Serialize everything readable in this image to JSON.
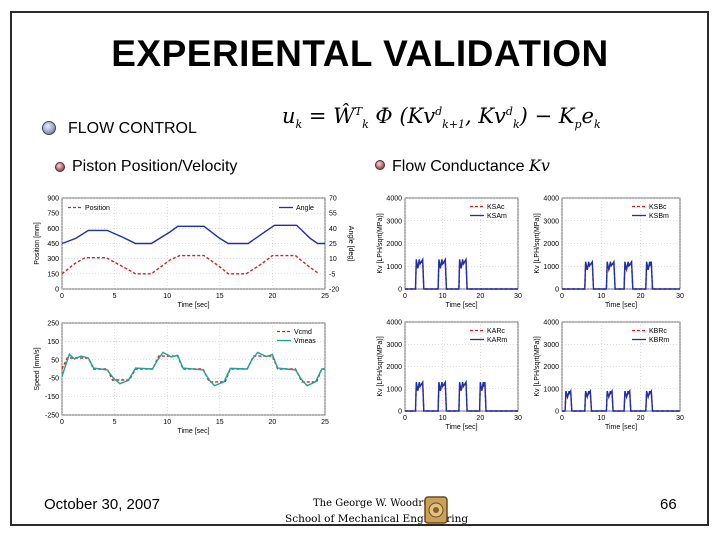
{
  "slide": {
    "title": "EXPERIENTAL VALIDATION",
    "flow_control": "FLOW CONTROL",
    "piston_label": "Piston Position/Velocity",
    "flow_conductance_label": "Flow Conductance",
    "flow_conductance_symbol": "Kv",
    "date": "October 30, 2007",
    "page_number": "66",
    "logo_line1": "The George W. Woodruff",
    "logo_line2": "School of Mechanical Engineering"
  },
  "colors": {
    "red": "#d42020",
    "blue": "#1c2fb0",
    "teal": "#1aa59a"
  },
  "chart_data": [
    {
      "type": "line",
      "xlabel": "Time [sec]",
      "ylabel": "Position [mm]",
      "y2label": "Angle [deg]",
      "xticks": [
        "0",
        "5",
        "10",
        "15",
        "20",
        "25"
      ],
      "yticks": [
        "900",
        "750",
        "600",
        "450",
        "300",
        "150",
        "0"
      ],
      "y2ticks": [
        "70",
        "55",
        "40",
        "25",
        "10",
        "-5",
        "-20"
      ],
      "xlim": [
        0,
        25
      ],
      "ylim": [
        0,
        900
      ],
      "y2lim": [
        -20,
        70
      ],
      "series": [
        {
          "name": "Position",
          "color": "red",
          "dash": true,
          "points": [
            [
              0,
              150
            ],
            [
              1.2,
              250
            ],
            [
              2.2,
              310
            ],
            [
              4.2,
              310
            ],
            [
              5.8,
              220
            ],
            [
              7,
              150
            ],
            [
              8.5,
              150
            ],
            [
              10.3,
              290
            ],
            [
              11.2,
              330
            ],
            [
              13.5,
              330
            ],
            [
              15,
              220
            ],
            [
              15.8,
              150
            ],
            [
              17.5,
              150
            ],
            [
              19,
              250
            ],
            [
              20,
              330
            ],
            [
              22.2,
              330
            ],
            [
              23.5,
              220
            ],
            [
              24.3,
              160
            ]
          ]
        },
        {
          "name": "Angle",
          "color": "blue",
          "dash": false,
          "axis": "y2",
          "points": [
            [
              0,
              25
            ],
            [
              1.3,
              30
            ],
            [
              2.5,
              38
            ],
            [
              4.3,
              38
            ],
            [
              5.8,
              31
            ],
            [
              7,
              25
            ],
            [
              8.5,
              25
            ],
            [
              10.2,
              36
            ],
            [
              11,
              42
            ],
            [
              13.5,
              42
            ],
            [
              15,
              30
            ],
            [
              15.8,
              25
            ],
            [
              17.7,
              25
            ],
            [
              19.2,
              36
            ],
            [
              20.2,
              43
            ],
            [
              22.3,
              43
            ],
            [
              23.6,
              30
            ],
            [
              24.3,
              25
            ],
            [
              25,
              25
            ]
          ]
        }
      ],
      "legend": "top"
    },
    {
      "type": "line",
      "xlabel": "Time [sec]",
      "ylabel": "Speed [mm/s]",
      "xticks": [
        "0",
        "5",
        "10",
        "15",
        "20",
        "25"
      ],
      "yticks": [
        "250",
        "150",
        "50",
        "-50",
        "-150",
        "-250"
      ],
      "xlim": [
        0,
        25
      ],
      "ylim": [
        -250,
        250
      ],
      "series": [
        {
          "name": "Vcmd",
          "color": "red",
          "dash": true,
          "points": [
            [
              0,
              0
            ],
            [
              0.5,
              60
            ],
            [
              2.5,
              60
            ],
            [
              3,
              0
            ],
            [
              4.3,
              0
            ],
            [
              4.8,
              -60
            ],
            [
              6.4,
              -60
            ],
            [
              7,
              0
            ],
            [
              8.6,
              0
            ],
            [
              9.2,
              70
            ],
            [
              11,
              70
            ],
            [
              11.5,
              0
            ],
            [
              13.4,
              0
            ],
            [
              14,
              -70
            ],
            [
              15.5,
              -70
            ],
            [
              16,
              0
            ],
            [
              17.6,
              0
            ],
            [
              18.2,
              70
            ],
            [
              20,
              70
            ],
            [
              20.5,
              0
            ],
            [
              22.2,
              0
            ],
            [
              22.8,
              -70
            ],
            [
              24.2,
              -70
            ],
            [
              24.7,
              0
            ],
            [
              25,
              0
            ]
          ]
        },
        {
          "name": "Vmeas",
          "color": "teal",
          "dash": false,
          "points": [
            [
              0,
              -40
            ],
            [
              0.4,
              30
            ],
            [
              0.7,
              80
            ],
            [
              1.2,
              55
            ],
            [
              1.8,
              70
            ],
            [
              2.5,
              60
            ],
            [
              3,
              5
            ],
            [
              4.3,
              -5
            ],
            [
              4.9,
              -50
            ],
            [
              5.5,
              -80
            ],
            [
              6.3,
              -62
            ],
            [
              7,
              5
            ],
            [
              8.6,
              0
            ],
            [
              9.1,
              50
            ],
            [
              9.6,
              90
            ],
            [
              10.4,
              65
            ],
            [
              11,
              75
            ],
            [
              11.5,
              5
            ],
            [
              13.4,
              -5
            ],
            [
              14,
              -60
            ],
            [
              14.5,
              -90
            ],
            [
              15.4,
              -70
            ],
            [
              16,
              3
            ],
            [
              17.6,
              0
            ],
            [
              18.1,
              55
            ],
            [
              18.6,
              90
            ],
            [
              19.4,
              68
            ],
            [
              20,
              78
            ],
            [
              20.5,
              5
            ],
            [
              22.2,
              -5
            ],
            [
              22.8,
              -60
            ],
            [
              23.3,
              -90
            ],
            [
              24.1,
              -70
            ],
            [
              24.7,
              0
            ],
            [
              25,
              0
            ]
          ]
        }
      ],
      "legend": "top-right"
    },
    {
      "type": "line",
      "xlabel": "Time [sec]",
      "ylabel": "Kv [LPH/sqrt(MPa)]",
      "xticks": [
        "0",
        "10",
        "20",
        "30"
      ],
      "yticks": [
        "4000",
        "3000",
        "2000",
        "1000",
        "0"
      ],
      "xlim": [
        0,
        30
      ],
      "ylim": [
        0,
        4000
      ],
      "series": [
        {
          "name": "KSAc",
          "color": "red",
          "dash": true
        },
        {
          "name": "KSAm",
          "color": "blue",
          "dash": false
        }
      ],
      "pulses": [
        [
          3,
          5
        ],
        [
          9,
          11
        ],
        [
          14.5,
          16.5
        ]
      ],
      "pulse_height": 1300,
      "legend": "top-right"
    },
    {
      "type": "line",
      "xlabel": "Time [sec]",
      "ylabel": "Kv [LPH/sqrt(MPa)]",
      "xticks": [
        "0",
        "10",
        "20",
        "30"
      ],
      "yticks": [
        "4000",
        "3000",
        "2000",
        "1000",
        "0"
      ],
      "xlim": [
        0,
        30
      ],
      "ylim": [
        0,
        4000
      ],
      "series": [
        {
          "name": "KSBc",
          "color": "red",
          "dash": true
        },
        {
          "name": "KSBm",
          "color": "blue",
          "dash": false
        }
      ],
      "pulses": [
        [
          6,
          8
        ],
        [
          11.5,
          13.5
        ],
        [
          16,
          18
        ],
        [
          21.5,
          23
        ]
      ],
      "pulse_height": 1200,
      "legend": "top-right"
    },
    {
      "type": "line",
      "xlabel": "Time [sec]",
      "ylabel": "Kv [LPH/sqrt(MPa)]",
      "xticks": [
        "0",
        "10",
        "20",
        "30"
      ],
      "yticks": [
        "4000",
        "3000",
        "2000",
        "1000",
        "0"
      ],
      "xlim": [
        0,
        30
      ],
      "ylim": [
        0,
        4000
      ],
      "series": [
        {
          "name": "KARc",
          "color": "red",
          "dash": true
        },
        {
          "name": "KARm",
          "color": "blue",
          "dash": false
        }
      ],
      "pulses": [
        [
          3,
          5
        ],
        [
          9,
          11
        ],
        [
          14.5,
          16.5
        ],
        [
          20,
          21.5
        ]
      ],
      "pulse_height": 1300,
      "legend": "top-right"
    },
    {
      "type": "line",
      "xlabel": "Time [sec]",
      "ylabel": "Kv [LPH/sqrt(MPa)]",
      "xticks": [
        "0",
        "10",
        "20",
        "30"
      ],
      "yticks": [
        "4000",
        "3000",
        "2000",
        "1000",
        "0"
      ],
      "xlim": [
        0,
        30
      ],
      "ylim": [
        0,
        4000
      ],
      "series": [
        {
          "name": "KBRc",
          "color": "red",
          "dash": true
        },
        {
          "name": "KBRm",
          "color": "blue",
          "dash": false
        }
      ],
      "pulses": [
        [
          1,
          2.5
        ],
        [
          6,
          7.5
        ],
        [
          11.5,
          13
        ],
        [
          16,
          17.5
        ],
        [
          21.5,
          23
        ]
      ],
      "pulse_height": 900,
      "legend": "top-right"
    }
  ]
}
